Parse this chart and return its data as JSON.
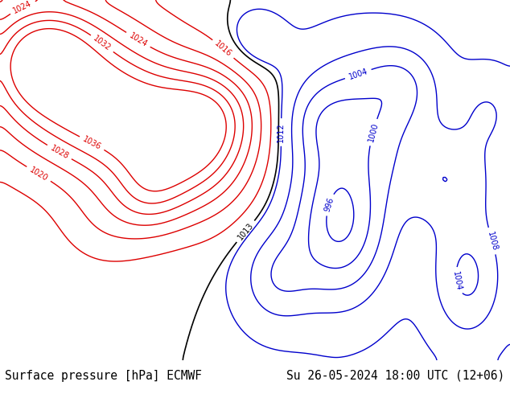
{
  "title_left": "Surface pressure [hPa] ECMWF",
  "title_right": "Su 26-05-2024 18:00 UTC (12+06)",
  "fig_width": 6.34,
  "fig_height": 4.9,
  "dpi": 100,
  "extent": [
    25,
    145,
    5,
    70
  ],
  "footer_fontsize": 10.5,
  "footer_font": "monospace",
  "c_high": "#dd0000",
  "c_low": "#0000cc",
  "c_mid": "#000000",
  "contour_lw": 1.0,
  "label_fontsize": 7
}
